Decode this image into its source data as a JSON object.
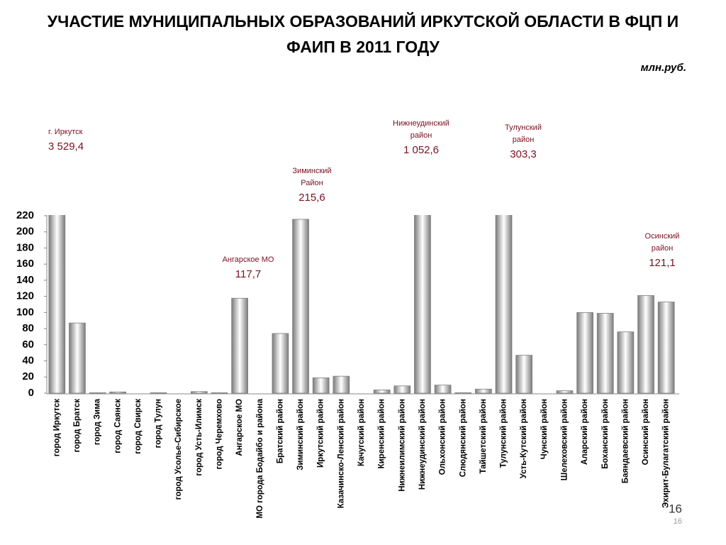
{
  "chart_data": {
    "type": "bar",
    "title": [
      "УЧАСТИЕ МУНИЦИПАЛЬНЫХ ОБРАЗОВАНИЙ ИРКУТСКОЙ ОБЛАСТИ В ФЦП И",
      "ФАИП В 2011 ГОДУ"
    ],
    "subtitle": "млн.руб.",
    "categories": [
      "город Иркутск",
      "город Братск",
      "город Зима",
      "город Саянск",
      "город Свирск",
      "город Тулун",
      "город Усолье-Сибирское",
      "город Усть-Илимск",
      "город Черемхово",
      "Ангарское МО",
      "МО города Бодайбо и района",
      "Братский район",
      "Зиминский район",
      "Иркутский район",
      "Казачинско-Ленский район",
      "Качугский район",
      "Киренский район",
      "Нижнеилимский район",
      "Нижнеудинский район",
      "Ольхонский район",
      "Слюдянский район",
      "Тайшетский район",
      "Тулунский район",
      "Усть-Кутский район",
      "Чунский район",
      "Шелеховский район",
      "Аларский район",
      "Боханский район",
      "Баяндаевский район",
      "Осинский район",
      "Эхирит-Булагатский район"
    ],
    "values": [
      3529.4,
      87,
      0.5,
      1.5,
      0,
      0.5,
      0,
      2,
      0.5,
      117.7,
      0,
      74,
      215.6,
      19,
      21,
      0,
      4,
      9,
      1052.6,
      10,
      0.5,
      5,
      303.3,
      47,
      0,
      3,
      100,
      99,
      76,
      121.1,
      113
    ],
    "value_labels": [
      "3 529,4",
      null,
      null,
      null,
      null,
      null,
      null,
      null,
      null,
      "117,7",
      null,
      null,
      "215,6",
      null,
      null,
      null,
      null,
      null,
      "1 052,6",
      null,
      null,
      null,
      "303,3",
      null,
      null,
      null,
      null,
      null,
      null,
      "121,1",
      null
    ],
    "annotations": [
      [
        "г. Иркутск"
      ],
      null,
      null,
      null,
      null,
      null,
      null,
      null,
      null,
      [
        "Ангарское МО"
      ],
      null,
      null,
      [
        "Зиминский",
        "Район"
      ],
      null,
      null,
      null,
      null,
      null,
      [
        "Нижнеудинский",
        "район"
      ],
      null,
      null,
      null,
      [
        "Тулунский",
        "район"
      ],
      null,
      null,
      null,
      null,
      null,
      null,
      [
        "Осинский",
        "район"
      ],
      null
    ],
    "color": "#808080",
    "ylim": [
      0,
      220
    ],
    "yticks": [
      0,
      20,
      40,
      60,
      80,
      100,
      120,
      140,
      160,
      180,
      200,
      220
    ],
    "page_number": "16"
  }
}
